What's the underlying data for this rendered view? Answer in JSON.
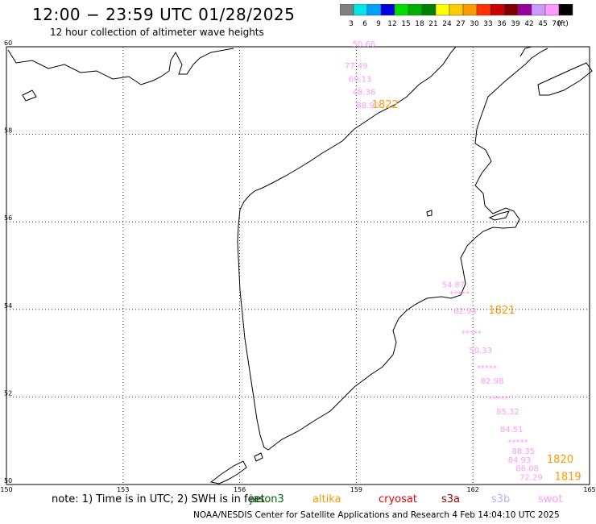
{
  "header": {
    "title": "12:00 − 23:59 UTC 01/28/2025",
    "subtitle": "12 hour collection of altimeter wave heights"
  },
  "legend": {
    "unit": "(ft)",
    "bins": [
      {
        "label": "3",
        "color": "#808080"
      },
      {
        "label": "6",
        "color": "#00e5e5"
      },
      {
        "label": "9",
        "color": "#00a0ff"
      },
      {
        "label": "12",
        "color": "#0000e0"
      },
      {
        "label": "15",
        "color": "#00dd00"
      },
      {
        "label": "18",
        "color": "#00b000"
      },
      {
        "label": "21",
        "color": "#008000"
      },
      {
        "label": "24",
        "color": "#ffff00"
      },
      {
        "label": "27",
        "color": "#ffcc00"
      },
      {
        "label": "30",
        "color": "#ff9900"
      },
      {
        "label": "33",
        "color": "#ff3300"
      },
      {
        "label": "36",
        "color": "#cc0000"
      },
      {
        "label": "39",
        "color": "#800000"
      },
      {
        "label": "42",
        "color": "#990099"
      },
      {
        "label": "45",
        "color": "#cc99ff"
      },
      {
        "label": "70",
        "color": "#ff99ff"
      },
      {
        "label": "",
        "color": "#000000"
      }
    ]
  },
  "map": {
    "lon_range": [
      150,
      165
    ],
    "lat_range": [
      50,
      60
    ],
    "lon_ticks": [
      "150",
      "153",
      "156",
      "159",
      "162",
      "165"
    ],
    "lat_ticks": [
      "60",
      "58",
      "56",
      "54",
      "52",
      "50"
    ],
    "grid": true,
    "swh_labels": [
      {
        "text": "50.66",
        "color": "#ff99ff",
        "lon": 158.9,
        "lat": 60.0
      },
      {
        "text": "77.49",
        "color": "#ff99ff",
        "lon": 158.7,
        "lat": 59.5
      },
      {
        "text": "69.13",
        "color": "#ff99ff",
        "lon": 158.8,
        "lat": 59.2
      },
      {
        "text": "48.36",
        "color": "#ff99ff",
        "lon": 158.9,
        "lat": 58.9
      },
      {
        "text": "88.90",
        "color": "#ff99ff",
        "lon": 159.0,
        "lat": 58.6
      },
      {
        "text": "54.87",
        "color": "#ff99ff",
        "lon": 161.2,
        "lat": 54.5
      },
      {
        "text": "*****",
        "color": "#ff99ff",
        "lon": 161.4,
        "lat": 54.3
      },
      {
        "text": "62.94",
        "color": "#ff99ff",
        "lon": 161.5,
        "lat": 53.9
      },
      {
        "text": "*****",
        "color": "#ff99ff",
        "lon": 161.7,
        "lat": 53.4
      },
      {
        "text": "50.33",
        "color": "#ff99ff",
        "lon": 161.9,
        "lat": 53.0
      },
      {
        "text": "*****",
        "color": "#ff99ff",
        "lon": 162.1,
        "lat": 52.6
      },
      {
        "text": "82.98",
        "color": "#ff99ff",
        "lon": 162.2,
        "lat": 52.3
      },
      {
        "text": "*****",
        "color": "#ff99ff",
        "lon": 162.4,
        "lat": 51.9
      },
      {
        "text": "85.32",
        "color": "#ff99ff",
        "lon": 162.6,
        "lat": 51.6
      },
      {
        "text": "84.51",
        "color": "#ff99ff",
        "lon": 162.7,
        "lat": 51.2
      },
      {
        "text": "*****",
        "color": "#ff99ff",
        "lon": 162.9,
        "lat": 50.9
      },
      {
        "text": "88.35",
        "color": "#ff99ff",
        "lon": 163.0,
        "lat": 50.7
      },
      {
        "text": "84.93",
        "color": "#ff99ff",
        "lon": 162.9,
        "lat": 50.5
      },
      {
        "text": "86.08",
        "color": "#ff99ff",
        "lon": 163.1,
        "lat": 50.3
      },
      {
        "text": "72.29",
        "color": "#ff99ff",
        "lon": 163.2,
        "lat": 50.1
      }
    ],
    "time_labels": [
      {
        "text": "1822",
        "color": "#ff9900",
        "lon": 159.4,
        "lat": 58.6
      },
      {
        "text": "1821",
        "color": "#ff9900",
        "lon": 162.4,
        "lat": 53.9
      },
      {
        "text": "1820",
        "color": "#ff9900",
        "lon": 163.9,
        "lat": 50.5
      },
      {
        "text": "1819",
        "color": "#ff9900",
        "lon": 164.1,
        "lat": 50.1
      }
    ]
  },
  "footer": {
    "note": "note:  1) Time is in UTC;  2) SWH is in feet",
    "satellites": [
      {
        "name": "jason3",
        "color": "#006600"
      },
      {
        "name": "altika",
        "color": "#ff9900"
      },
      {
        "name": "cryosat",
        "color": "#ee0000"
      },
      {
        "name": "s3a",
        "color": "#990000"
      },
      {
        "name": "s3b",
        "color": "#b0b0ff"
      },
      {
        "name": "swot",
        "color": "#ff99ff"
      }
    ],
    "credit": "NOAA/NESDIS Center for Satellite Applications and Research     4 Feb 14:04:10 UTC 2025"
  }
}
